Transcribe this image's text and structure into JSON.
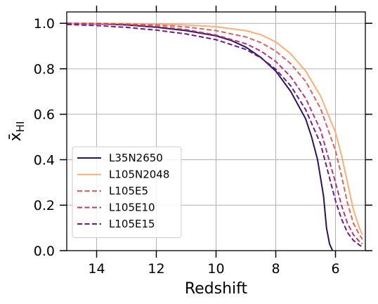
{
  "chart_data": {
    "type": "line",
    "title": "",
    "xlabel": "Redshift",
    "ylabel": "x̄",
    "ylabel_sub": "HI",
    "xlim": [
      15,
      5
    ],
    "ylim": [
      0.0,
      1.05
    ],
    "x_inverted": true,
    "grid": true,
    "legend_position": "lower-left",
    "xticks": [
      14,
      12,
      10,
      8,
      6
    ],
    "yticks": [
      0.0,
      0.2,
      0.4,
      0.6,
      0.8,
      1.0
    ],
    "xtick_labels": [
      "14",
      "12",
      "10",
      "8",
      "6"
    ],
    "ytick_labels": [
      "0.0",
      "0.2",
      "0.4",
      "0.6",
      "0.8",
      "1.0"
    ],
    "series": [
      {
        "name": "L35N2650",
        "color": "#2a1160",
        "dash": "solid",
        "x": [
          15,
          14,
          13,
          12,
          11,
          10,
          9.5,
          9,
          8.5,
          8,
          7.5,
          7,
          6.8,
          6.6,
          6.4,
          6.3,
          6.2,
          6.1
        ],
        "y": [
          1.0,
          0.998,
          0.993,
          0.983,
          0.968,
          0.945,
          0.925,
          0.895,
          0.85,
          0.79,
          0.7,
          0.58,
          0.5,
          0.4,
          0.24,
          0.1,
          0.03,
          0.0
        ]
      },
      {
        "name": "L105N2048",
        "color": "#fdae74",
        "dash": "solid",
        "x": [
          15,
          14,
          13,
          12,
          11,
          10,
          9,
          8.5,
          8,
          7.5,
          7,
          6.5,
          6,
          5.8,
          5.6,
          5.4,
          5.2,
          5.1
        ],
        "y": [
          1.0,
          1.0,
          0.999,
          0.997,
          0.993,
          0.985,
          0.968,
          0.95,
          0.918,
          0.866,
          0.79,
          0.68,
          0.52,
          0.42,
          0.3,
          0.18,
          0.1,
          0.07
        ]
      },
      {
        "name": "L105E5",
        "color": "#e1605e",
        "dash": "dashed",
        "x": [
          15,
          14,
          13,
          12,
          11,
          10,
          9,
          8.5,
          8,
          7.5,
          7,
          6.5,
          6,
          5.8,
          5.6,
          5.4,
          5.2,
          5.1
        ],
        "y": [
          1.0,
          0.999,
          0.997,
          0.993,
          0.984,
          0.968,
          0.94,
          0.915,
          0.878,
          0.822,
          0.745,
          0.625,
          0.44,
          0.33,
          0.21,
          0.12,
          0.07,
          0.05
        ]
      },
      {
        "name": "L105E10",
        "color": "#b8347a",
        "dash": "dashed",
        "x": [
          15,
          14,
          13,
          12,
          11,
          10,
          9,
          8.5,
          8,
          7.5,
          7,
          6.5,
          6,
          5.8,
          5.6,
          5.4,
          5.2,
          5.1
        ],
        "y": [
          1.0,
          0.998,
          0.994,
          0.986,
          0.972,
          0.948,
          0.91,
          0.878,
          0.832,
          0.765,
          0.67,
          0.53,
          0.3,
          0.2,
          0.12,
          0.07,
          0.04,
          0.03
        ]
      },
      {
        "name": "L105E15",
        "color": "#6b1b85",
        "dash": "dashed",
        "x": [
          15,
          14,
          13,
          12,
          11,
          10,
          9,
          8.5,
          8,
          7.5,
          7,
          6.5,
          6,
          5.8,
          5.6,
          5.4,
          5.2,
          5.1
        ],
        "y": [
          0.995,
          0.99,
          0.982,
          0.97,
          0.953,
          0.928,
          0.885,
          0.848,
          0.798,
          0.725,
          0.62,
          0.47,
          0.22,
          0.14,
          0.08,
          0.045,
          0.025,
          0.015
        ]
      }
    ]
  }
}
